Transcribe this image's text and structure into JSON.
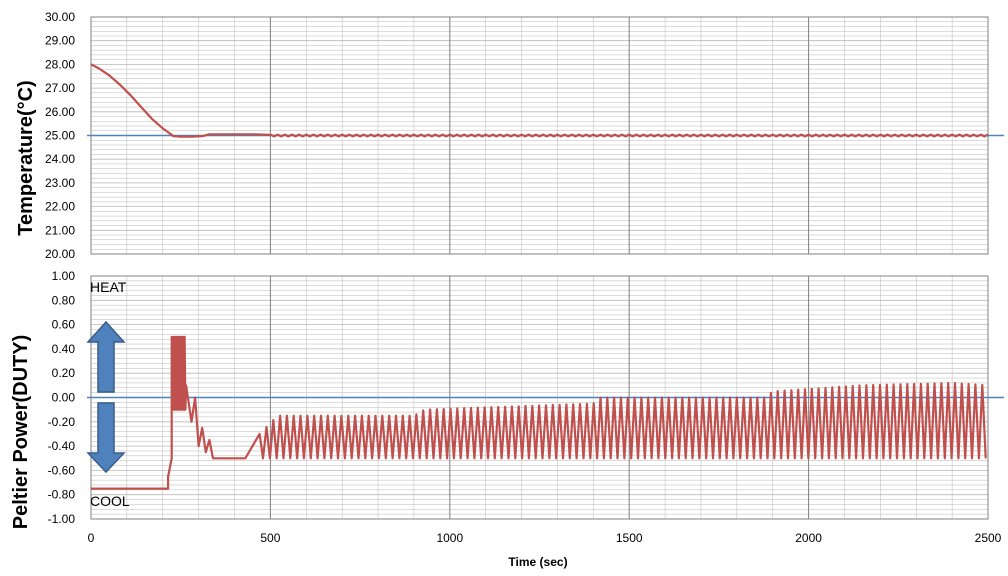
{
  "colors": {
    "series": "#c0504d",
    "reference": "#4f81bd",
    "grid": "#b8b8b8",
    "arrow_fill": "#4f81bd",
    "arrow_stroke": "#385d8a"
  },
  "chart_data": [
    {
      "type": "line",
      "ylabel": "Temperature(°C)",
      "ylim": [
        20,
        30
      ],
      "yticks": [
        "30.00",
        "29.00",
        "28.00",
        "27.00",
        "26.00",
        "25.00",
        "24.00",
        "23.00",
        "22.00",
        "21.00",
        "20.00"
      ],
      "xlim": [
        0,
        2500
      ],
      "grid": true,
      "reference_line": 25.0,
      "series": [
        {
          "x": [
            0,
            20,
            50,
            80,
            110,
            140,
            170,
            200,
            230,
            250,
            280,
            310,
            330,
            360,
            400,
            450,
            500,
            2500
          ],
          "y": [
            28.0,
            27.85,
            27.55,
            27.15,
            26.7,
            26.2,
            25.7,
            25.3,
            24.97,
            24.95,
            24.95,
            24.97,
            25.05,
            25.05,
            25.05,
            25.05,
            25.03,
            25.0
          ],
          "oscillation": {
            "from_x": 500,
            "period": 20,
            "amplitude": 0.04
          }
        }
      ]
    },
    {
      "type": "line",
      "ylabel": "Peltier Power(DUTY)",
      "xlabel": "Time (sec)",
      "ylim": [
        -1,
        1
      ],
      "yticks": [
        "1.00",
        "0.80",
        "0.60",
        "0.40",
        "0.20",
        "0.00",
        "-0.20",
        "-0.40",
        "-0.60",
        "-0.80",
        "-1.00"
      ],
      "xlim": [
        0,
        2500
      ],
      "xticks": [
        "0",
        "500",
        "1000",
        "1500",
        "2000",
        "2500"
      ],
      "grid": true,
      "reference_line": 0.0,
      "annotations": {
        "heat": "HEAT",
        "cool": "COOL"
      },
      "series": [
        {
          "segments": [
            {
              "x": [
                0,
                215,
                215,
                225,
                225
              ],
              "y": [
                -0.75,
                -0.75,
                -0.65,
                -0.5,
                -0.2
              ]
            },
            {
              "oscillation": {
                "x_start": 225,
                "x_end": 265,
                "period": 4,
                "high": 0.5,
                "low": -0.1
              }
            },
            {
              "x": [
                265,
                280,
                290,
                300,
                310,
                320,
                330,
                340,
                350,
                360,
                400,
                430,
                440,
                450,
                460,
                470
              ],
              "y": [
                0.1,
                -0.2,
                0.0,
                -0.4,
                -0.25,
                -0.45,
                -0.35,
                -0.5,
                -0.5,
                -0.5,
                -0.5,
                -0.5,
                -0.45,
                -0.4,
                -0.35,
                -0.3
              ]
            },
            {
              "oscillation": {
                "x_start": 470,
                "x_end": 2500,
                "period": 19,
                "low": -0.5,
                "high_steps": [
                  [
                    470,
                    -0.3
                  ],
                  [
                    520,
                    -0.15
                  ],
                  [
                    600,
                    -0.15
                  ],
                  [
                    900,
                    -0.15
                  ],
                  [
                    930,
                    -0.1
                  ],
                  [
                    1400,
                    -0.05
                  ],
                  [
                    1420,
                    0.0
                  ],
                  [
                    1880,
                    0.0
                  ],
                  [
                    1900,
                    0.05
                  ],
                  [
                    2150,
                    0.1
                  ],
                  [
                    2400,
                    0.12
                  ],
                  [
                    2500,
                    0.1
                  ]
                ]
              }
            }
          ]
        }
      ]
    }
  ]
}
